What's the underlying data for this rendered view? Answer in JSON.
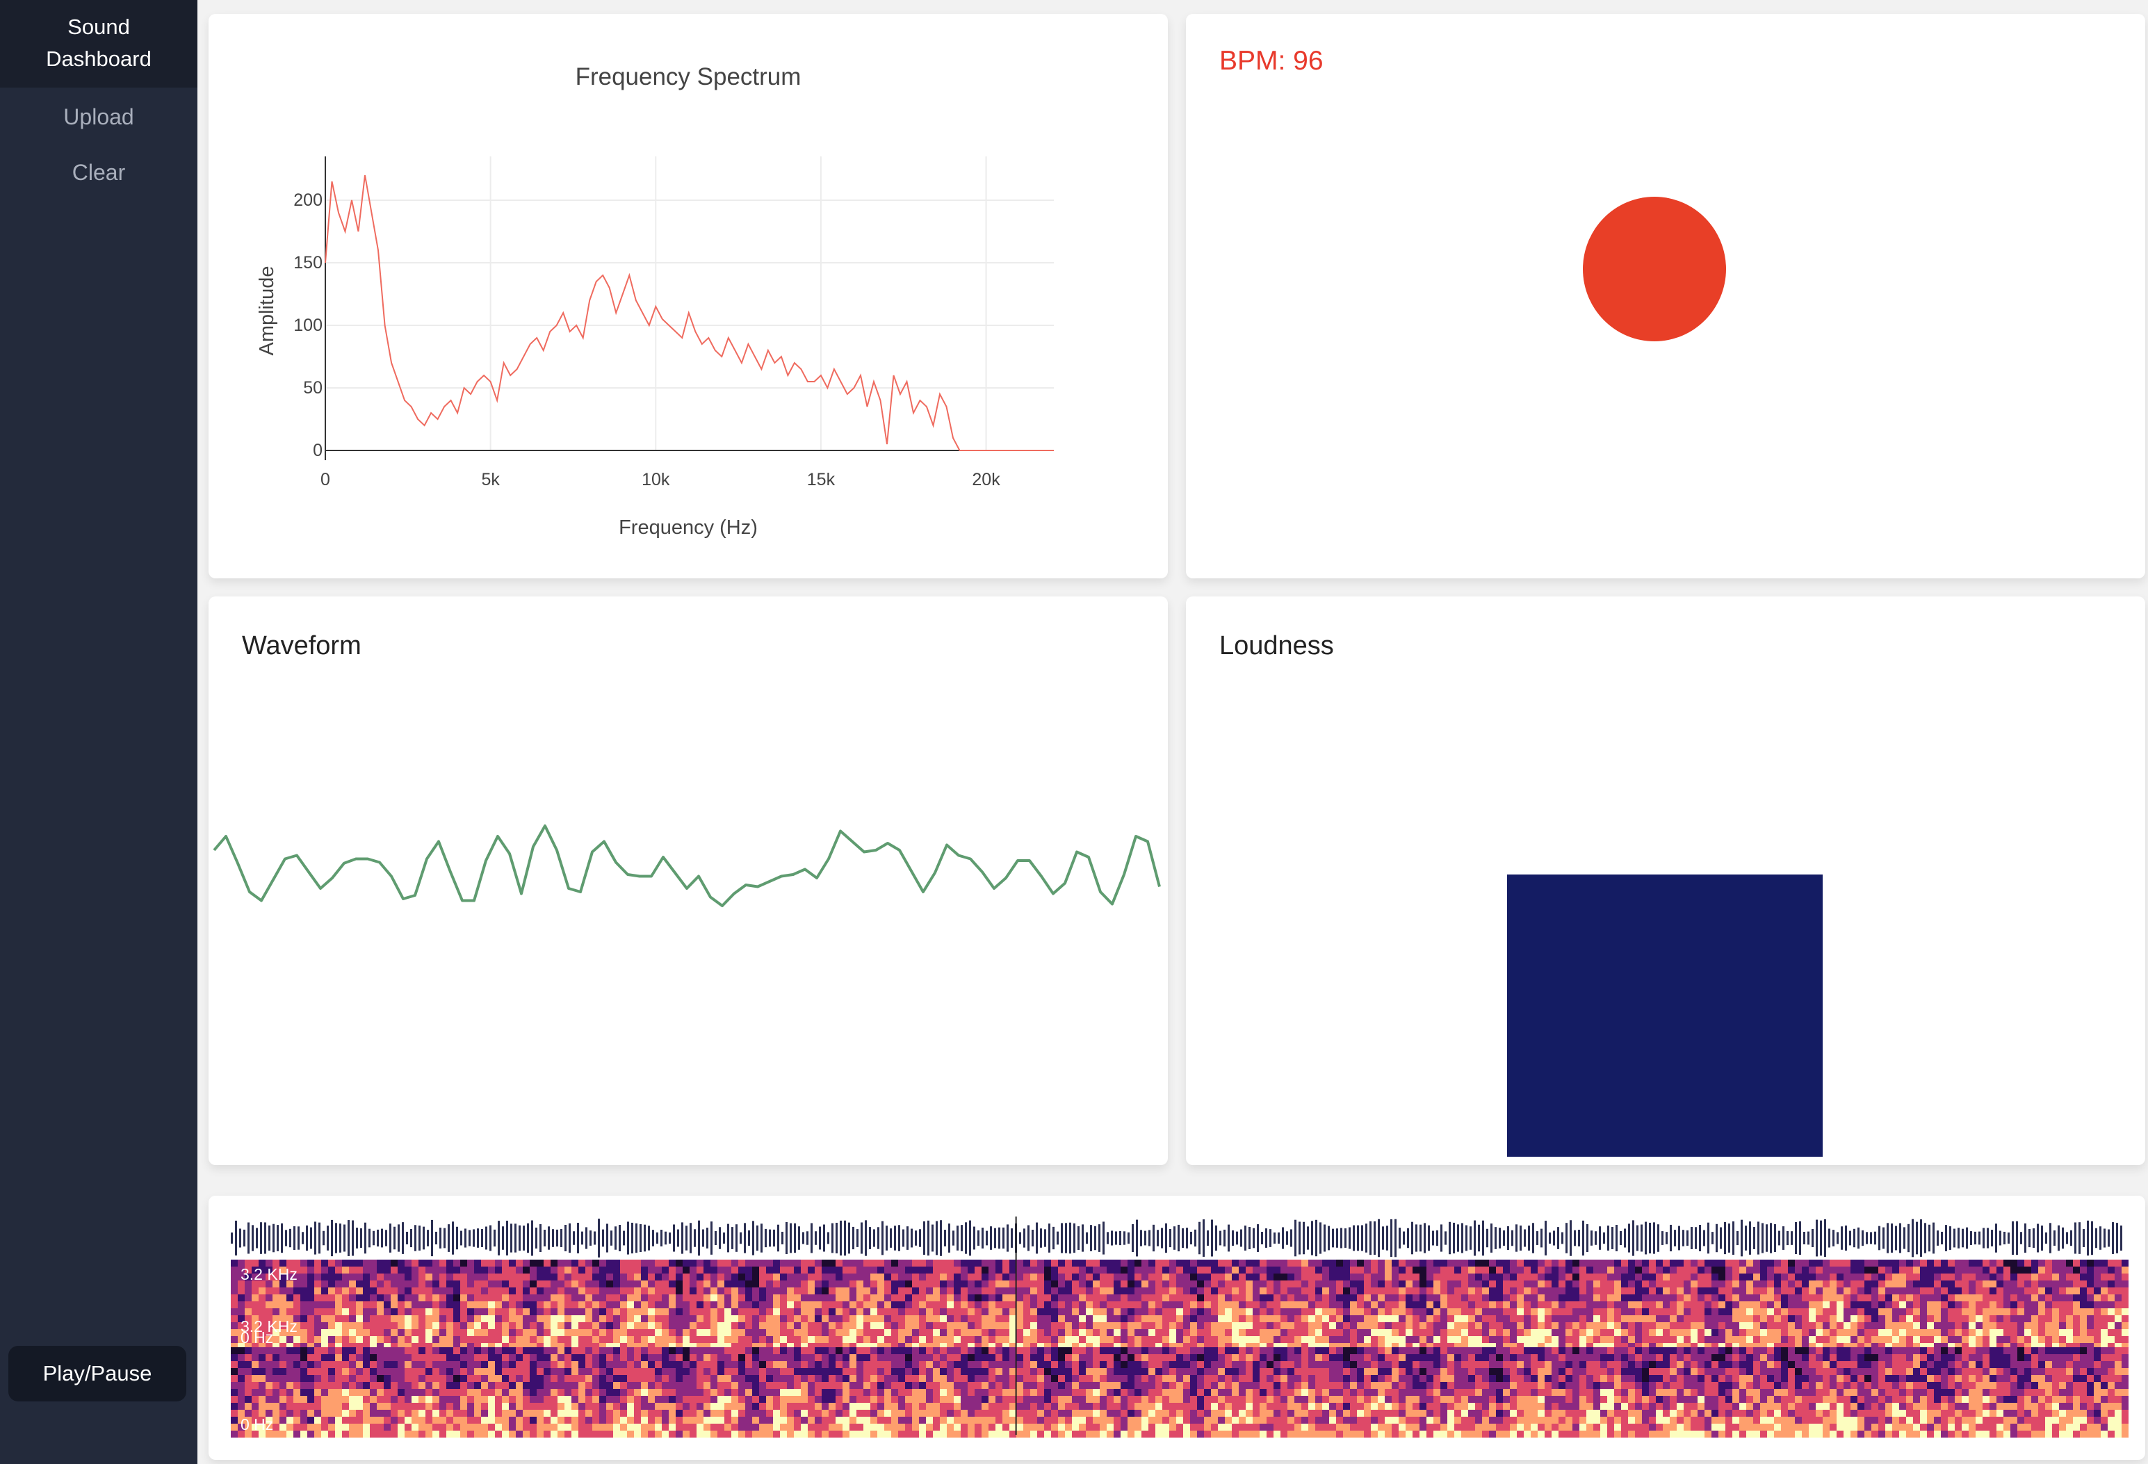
{
  "sidebar": {
    "brand": "Sound\nDashboard",
    "upload_label": "Upload",
    "clear_label": "Clear",
    "play_label": "Play/Pause"
  },
  "colors": {
    "spectrum_line": "#ef6b5f",
    "bpm_accent": "#e83f27",
    "waveform_line": "#5f9c70",
    "loudness_bar": "#141c63",
    "sidebar_bg": "#232a3b"
  },
  "spectrum": {
    "chart_data": {
      "type": "line",
      "title": "Frequency Spectrum",
      "xlabel": "Frequency (Hz)",
      "ylabel": "Amplitude",
      "xlim": [
        0,
        22050
      ],
      "ylim": [
        0,
        235
      ],
      "x_ticks": [
        0,
        5000,
        10000,
        15000,
        20000
      ],
      "x_tick_labels": [
        "0",
        "5k",
        "10k",
        "15k",
        "20k"
      ],
      "y_ticks": [
        0,
        50,
        100,
        150,
        200
      ],
      "y_tick_labels": [
        "0",
        "50",
        "100",
        "150",
        "200"
      ],
      "grid": true,
      "series": [
        {
          "x": [
            0,
            200,
            400,
            600,
            800,
            1000,
            1200,
            1400,
            1600,
            1800,
            2000,
            2200,
            2400,
            2600,
            2800,
            3000,
            3200,
            3400,
            3600,
            3800,
            4000,
            4200,
            4400,
            4600,
            4800,
            5000,
            5200,
            5400,
            5600,
            5800,
            6000,
            6200,
            6400,
            6600,
            6800,
            7000,
            7200,
            7400,
            7600,
            7800,
            8000,
            8200,
            8400,
            8600,
            8800,
            9000,
            9200,
            9400,
            9600,
            9800,
            10000,
            10200,
            10400,
            10600,
            10800,
            11000,
            11200,
            11400,
            11600,
            11800,
            12000,
            12200,
            12400,
            12600,
            12800,
            13000,
            13200,
            13400,
            13600,
            13800,
            14000,
            14200,
            14400,
            14600,
            14800,
            15000,
            15200,
            15400,
            15600,
            15800,
            16000,
            16200,
            16400,
            16600,
            16800,
            17000,
            17200,
            17400,
            17600,
            17800,
            18000,
            18200,
            18400,
            18600,
            18800,
            19000,
            19200,
            22050
          ],
          "y": [
            150,
            215,
            190,
            175,
            200,
            175,
            220,
            190,
            160,
            100,
            70,
            55,
            40,
            35,
            25,
            20,
            30,
            25,
            35,
            40,
            30,
            50,
            45,
            55,
            60,
            55,
            40,
            70,
            60,
            65,
            75,
            85,
            90,
            80,
            95,
            100,
            110,
            95,
            100,
            90,
            120,
            135,
            140,
            130,
            110,
            125,
            140,
            120,
            110,
            100,
            115,
            105,
            100,
            95,
            90,
            110,
            95,
            85,
            90,
            80,
            75,
            90,
            80,
            70,
            85,
            75,
            65,
            80,
            70,
            75,
            60,
            70,
            65,
            55,
            55,
            60,
            50,
            65,
            55,
            45,
            50,
            60,
            35,
            55,
            40,
            5,
            60,
            45,
            55,
            30,
            40,
            35,
            20,
            45,
            35,
            10,
            0,
            0
          ]
        }
      ]
    }
  },
  "bpm": {
    "label": "BPM: 96",
    "value": 96
  },
  "waveform": {
    "title": "Waveform",
    "samples": [
      0.2,
      0.36,
      0.05,
      -0.28,
      -0.38,
      -0.14,
      0.1,
      0.14,
      -0.05,
      -0.24,
      -0.12,
      0.05,
      0.1,
      0.1,
      0.06,
      -0.1,
      -0.36,
      -0.32,
      0.1,
      0.3,
      -0.05,
      -0.38,
      -0.38,
      0.08,
      0.36,
      0.16,
      -0.3,
      0.24,
      0.48,
      0.2,
      -0.24,
      -0.28,
      0.18,
      0.3,
      0.06,
      -0.08,
      -0.1,
      -0.1,
      0.12,
      -0.06,
      -0.24,
      -0.1,
      -0.34,
      -0.44,
      -0.3,
      -0.2,
      -0.22,
      -0.16,
      -0.1,
      -0.08,
      -0.02,
      -0.12,
      0.1,
      0.42,
      0.3,
      0.18,
      0.2,
      0.28,
      0.2,
      -0.04,
      -0.28,
      -0.06,
      0.26,
      0.14,
      0.1,
      -0.05,
      -0.24,
      -0.12,
      0.08,
      0.08,
      -0.1,
      -0.3,
      -0.18,
      0.18,
      0.12,
      -0.28,
      -0.42,
      -0.08,
      0.36,
      0.3,
      -0.22
    ]
  },
  "loudness": {
    "title": "Loudness",
    "level": 0.52
  },
  "spectrogram": {
    "freq_top_label": "3.2 KHz",
    "freq_bottom_label": "0 Hz",
    "channels": 2,
    "playhead_fraction": 0.415
  }
}
